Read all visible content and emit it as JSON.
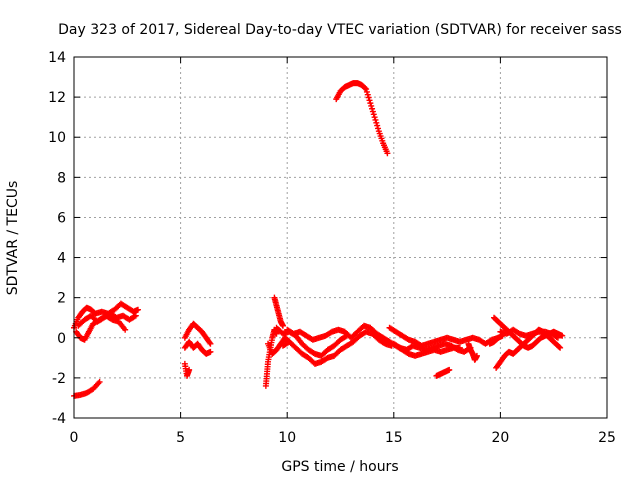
{
  "chart_data": {
    "type": "scatter",
    "title": "Day 323 of 2017, Sidereal Day-to-day VTEC variation (SDTVAR) for receiver sass",
    "xlabel": "GPS time / hours",
    "ylabel": "SDTVAR / TECUs",
    "xlim": [
      0,
      25
    ],
    "ylim": [
      -4,
      14
    ],
    "xticks": [
      0,
      5,
      10,
      15,
      20,
      25
    ],
    "yticks": [
      -4,
      -2,
      0,
      2,
      4,
      6,
      8,
      10,
      12,
      14
    ],
    "xtick_labels": [
      "0",
      "5",
      "10",
      "15",
      "20",
      "25"
    ],
    "ytick_labels": [
      "-4",
      "-2",
      "0",
      "2",
      "4",
      "6",
      "8",
      "10",
      "12",
      "14"
    ],
    "grid": true,
    "marker": "+",
    "series": [
      {
        "name": "SDTVAR",
        "color": "#ff0000",
        "segments": [
          [
            [
              0.0,
              -2.9
            ],
            [
              0.3,
              -2.85
            ],
            [
              0.6,
              -2.75
            ],
            [
              0.9,
              -2.55
            ],
            [
              1.2,
              -2.2
            ]
          ],
          [
            [
              0.0,
              0.5
            ],
            [
              0.2,
              1.0
            ],
            [
              0.4,
              1.3
            ],
            [
              0.6,
              1.5
            ],
            [
              0.8,
              1.4
            ],
            [
              1.0,
              1.2
            ],
            [
              1.3,
              1.3
            ],
            [
              1.6,
              1.2
            ],
            [
              1.9,
              1.4
            ],
            [
              2.2,
              1.7
            ],
            [
              2.5,
              1.5
            ],
            [
              2.8,
              1.3
            ],
            [
              3.0,
              1.4
            ]
          ],
          [
            [
              0.1,
              0.3
            ],
            [
              0.3,
              0.0
            ],
            [
              0.5,
              -0.1
            ],
            [
              0.7,
              0.3
            ],
            [
              0.9,
              0.7
            ],
            [
              1.2,
              0.9
            ],
            [
              1.5,
              1.1
            ],
            [
              1.8,
              0.9
            ],
            [
              2.1,
              0.8
            ],
            [
              2.4,
              0.4
            ]
          ],
          [
            [
              0.2,
              0.6
            ],
            [
              0.5,
              0.9
            ],
            [
              0.8,
              1.1
            ],
            [
              1.1,
              0.8
            ],
            [
              1.4,
              1.0
            ],
            [
              1.7,
              1.2
            ],
            [
              2.0,
              1.0
            ],
            [
              2.3,
              1.1
            ],
            [
              2.6,
              0.9
            ],
            [
              2.9,
              1.1
            ]
          ],
          [
            [
              5.2,
              0.0
            ],
            [
              5.4,
              0.4
            ],
            [
              5.6,
              0.7
            ],
            [
              5.8,
              0.5
            ],
            [
              6.0,
              0.3
            ],
            [
              6.2,
              0.0
            ],
            [
              6.4,
              -0.3
            ]
          ],
          [
            [
              5.2,
              -0.5
            ],
            [
              5.4,
              -0.2
            ],
            [
              5.6,
              -0.5
            ],
            [
              5.8,
              -0.3
            ],
            [
              6.0,
              -0.6
            ],
            [
              6.2,
              -0.8
            ],
            [
              6.4,
              -0.7
            ]
          ],
          [
            [
              5.2,
              -1.3
            ],
            [
              5.3,
              -1.9
            ],
            [
              5.4,
              -1.6
            ]
          ],
          [
            [
              9.0,
              -2.4
            ],
            [
              9.05,
              -1.8
            ],
            [
              9.1,
              -1.2
            ],
            [
              9.2,
              -0.6
            ],
            [
              9.3,
              0.0
            ],
            [
              9.4,
              0.4
            ],
            [
              9.5,
              0.2
            ]
          ],
          [
            [
              9.1,
              -0.3
            ],
            [
              9.3,
              -0.8
            ],
            [
              9.5,
              -0.6
            ],
            [
              9.7,
              -0.3
            ],
            [
              9.9,
              0.0
            ],
            [
              10.1,
              -0.2
            ]
          ],
          [
            [
              9.4,
              2.0
            ],
            [
              9.5,
              1.6
            ],
            [
              9.6,
              1.2
            ],
            [
              9.7,
              0.8
            ],
            [
              9.8,
              0.6
            ]
          ],
          [
            [
              9.5,
              0.5
            ],
            [
              9.8,
              0.2
            ],
            [
              10.1,
              0.3
            ],
            [
              10.4,
              0.1
            ],
            [
              10.7,
              -0.3
            ],
            [
              11.0,
              -0.6
            ],
            [
              11.3,
              -0.8
            ],
            [
              11.6,
              -0.9
            ],
            [
              11.9,
              -0.6
            ],
            [
              12.2,
              -0.4
            ],
            [
              12.5,
              -0.1
            ],
            [
              12.8,
              0.1
            ]
          ],
          [
            [
              9.8,
              -0.4
            ],
            [
              10.1,
              -0.2
            ],
            [
              10.4,
              -0.5
            ],
            [
              10.7,
              -0.8
            ],
            [
              11.0,
              -1.0
            ],
            [
              11.3,
              -1.3
            ],
            [
              11.6,
              -1.2
            ],
            [
              11.9,
              -1.0
            ],
            [
              12.2,
              -0.9
            ],
            [
              12.5,
              -0.6
            ],
            [
              12.8,
              -0.4
            ],
            [
              13.1,
              -0.2
            ],
            [
              13.4,
              0.1
            ],
            [
              13.7,
              0.3
            ],
            [
              14.0,
              0.2
            ],
            [
              14.3,
              -0.1
            ],
            [
              14.6,
              -0.3
            ],
            [
              14.9,
              -0.4
            ]
          ],
          [
            [
              10.0,
              0.4
            ],
            [
              10.3,
              0.2
            ],
            [
              10.6,
              0.3
            ],
            [
              10.9,
              0.1
            ],
            [
              11.2,
              -0.1
            ],
            [
              11.5,
              0.0
            ],
            [
              11.8,
              0.1
            ],
            [
              12.1,
              0.3
            ],
            [
              12.4,
              0.4
            ],
            [
              12.7,
              0.3
            ],
            [
              13.0,
              0.0
            ],
            [
              13.3,
              0.3
            ],
            [
              13.6,
              0.6
            ],
            [
              13.9,
              0.5
            ],
            [
              14.2,
              0.2
            ],
            [
              14.5,
              0.0
            ],
            [
              14.8,
              -0.2
            ],
            [
              15.1,
              -0.4
            ],
            [
              15.4,
              -0.6
            ],
            [
              15.7,
              -0.8
            ],
            [
              16.0,
              -0.9
            ],
            [
              16.3,
              -0.8
            ],
            [
              16.6,
              -0.7
            ],
            [
              16.9,
              -0.6
            ],
            [
              17.2,
              -0.7
            ],
            [
              17.5,
              -0.6
            ],
            [
              17.8,
              -0.5
            ],
            [
              18.1,
              -0.5
            ]
          ],
          [
            [
              14.8,
              0.5
            ],
            [
              15.1,
              0.3
            ],
            [
              15.4,
              0.1
            ],
            [
              15.7,
              -0.1
            ],
            [
              16.0,
              -0.2
            ],
            [
              16.3,
              -0.4
            ],
            [
              16.6,
              -0.3
            ],
            [
              16.9,
              -0.2
            ],
            [
              17.2,
              -0.1
            ],
            [
              17.5,
              0.0
            ],
            [
              17.8,
              -0.1
            ],
            [
              18.1,
              -0.2
            ],
            [
              18.4,
              -0.1
            ],
            [
              18.7,
              0.0
            ],
            [
              19.0,
              -0.1
            ],
            [
              19.3,
              -0.3
            ],
            [
              19.6,
              -0.1
            ],
            [
              19.9,
              0.0
            ]
          ],
          [
            [
              15.0,
              -0.3
            ],
            [
              15.3,
              -0.5
            ],
            [
              15.6,
              -0.6
            ],
            [
              15.9,
              -0.4
            ],
            [
              16.2,
              -0.5
            ],
            [
              16.5,
              -0.6
            ],
            [
              16.8,
              -0.5
            ],
            [
              17.1,
              -0.4
            ],
            [
              17.4,
              -0.3
            ],
            [
              17.7,
              -0.4
            ],
            [
              18.0,
              -0.6
            ],
            [
              18.3,
              -0.7
            ],
            [
              18.6,
              -0.5
            ]
          ],
          [
            [
              17.0,
              -1.9
            ],
            [
              17.2,
              -1.8
            ],
            [
              17.4,
              -1.7
            ],
            [
              17.6,
              -1.6
            ]
          ],
          [
            [
              18.5,
              -0.3
            ],
            [
              18.6,
              -0.6
            ],
            [
              18.7,
              -0.8
            ],
            [
              18.8,
              -1.1
            ],
            [
              18.9,
              -0.9
            ]
          ],
          [
            [
              12.3,
              11.9
            ],
            [
              12.5,
              12.3
            ],
            [
              12.7,
              12.5
            ],
            [
              12.9,
              12.6
            ],
            [
              13.1,
              12.7
            ],
            [
              13.3,
              12.7
            ],
            [
              13.5,
              12.6
            ],
            [
              13.7,
              12.4
            ],
            [
              13.9,
              11.7
            ],
            [
              14.1,
              11.0
            ],
            [
              14.3,
              10.3
            ],
            [
              14.5,
              9.7
            ],
            [
              14.7,
              9.2
            ]
          ],
          [
            [
              19.7,
              1.0
            ],
            [
              19.9,
              0.8
            ],
            [
              20.1,
              0.6
            ],
            [
              20.3,
              0.4
            ],
            [
              20.5,
              0.2
            ],
            [
              20.7,
              0.0
            ],
            [
              20.9,
              -0.2
            ],
            [
              21.1,
              -0.4
            ],
            [
              21.3,
              -0.5
            ],
            [
              21.5,
              -0.4
            ],
            [
              21.7,
              -0.2
            ],
            [
              21.9,
              0.0
            ],
            [
              22.1,
              0.1
            ],
            [
              22.3,
              0.2
            ],
            [
              22.5,
              0.3
            ],
            [
              22.7,
              0.2
            ],
            [
              22.9,
              0.1
            ]
          ],
          [
            [
              19.8,
              -1.5
            ],
            [
              20.0,
              -1.2
            ],
            [
              20.2,
              -0.9
            ],
            [
              20.4,
              -0.7
            ],
            [
              20.6,
              -0.8
            ],
            [
              20.8,
              -0.6
            ],
            [
              21.0,
              -0.4
            ],
            [
              21.2,
              -0.2
            ],
            [
              21.4,
              0.0
            ],
            [
              21.6,
              0.2
            ],
            [
              21.8,
              0.4
            ],
            [
              22.0,
              0.3
            ],
            [
              22.2,
              0.1
            ],
            [
              22.4,
              -0.1
            ],
            [
              22.6,
              -0.3
            ],
            [
              22.8,
              -0.5
            ]
          ],
          [
            [
              20.0,
              0.3
            ],
            [
              20.3,
              0.2
            ],
            [
              20.6,
              0.4
            ],
            [
              20.9,
              0.2
            ],
            [
              21.2,
              0.1
            ],
            [
              21.5,
              0.2
            ],
            [
              21.8,
              0.3
            ],
            [
              22.1,
              0.3
            ],
            [
              22.4,
              0.2
            ],
            [
              22.7,
              0.0
            ]
          ],
          [
            [
              19.5,
              -0.3
            ],
            [
              19.7,
              -0.2
            ],
            [
              19.9,
              0.0
            ],
            [
              20.1,
              0.1
            ]
          ]
        ]
      }
    ]
  }
}
